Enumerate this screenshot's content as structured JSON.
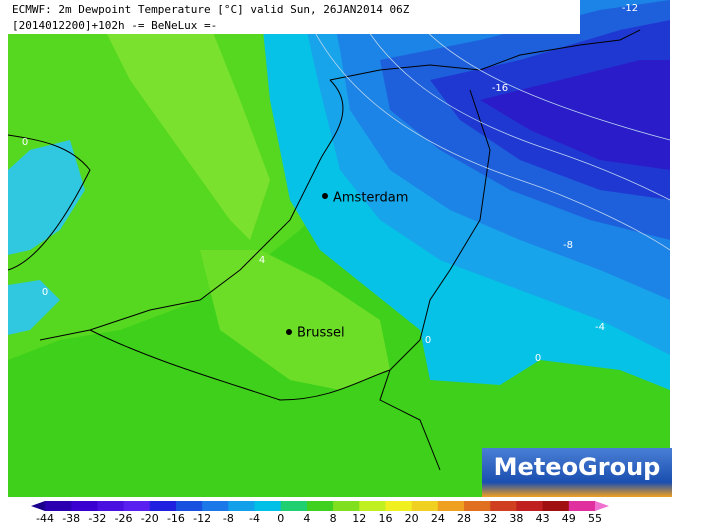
{
  "header": {
    "line1": "ECMWF: 2m Dewpoint Temperature [°C] valid Sun, 26JAN2014 06Z",
    "line2": "[2014012200]+102h -= BeNeLux =-"
  },
  "map": {
    "cities": [
      {
        "label": "Amsterdam"
      },
      {
        "label": "Brussel"
      }
    ],
    "contour_labels": [
      -12,
      -16,
      0,
      0,
      4,
      0,
      0,
      -8,
      -4
    ]
  },
  "logo": "MeteoGroup",
  "colorbar": {
    "labels": [
      -44,
      -38,
      -32,
      -26,
      -20,
      -16,
      -12,
      -8,
      -4,
      0,
      4,
      8,
      12,
      16,
      20,
      24,
      28,
      32,
      38,
      43,
      49,
      55
    ]
  }
}
